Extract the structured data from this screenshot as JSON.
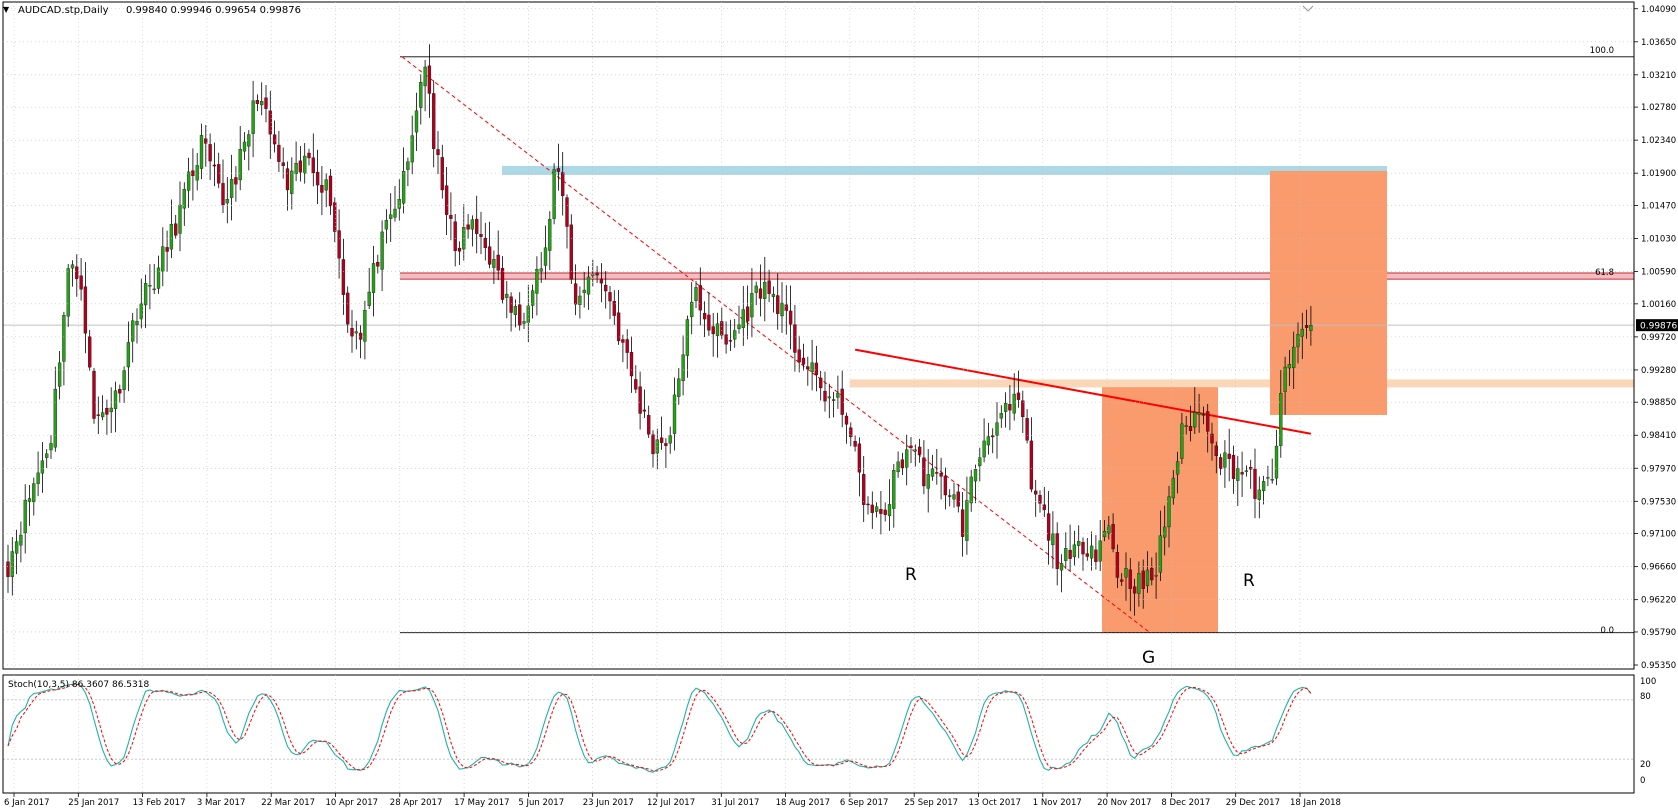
{
  "header": {
    "symbol": "AUDCAD.stp,Daily",
    "ohlc": "0.99840 0.99946 0.99654 0.99876",
    "arrow_glyph": "▼"
  },
  "indicator": {
    "title": "Stoch(10,3,5) 86.3607 86.5318",
    "y_labels": [
      "100",
      "80",
      "20",
      "0"
    ]
  },
  "fib_labels": {
    "top": "100.0",
    "mid": "61.8",
    "bottom": "0.0"
  },
  "pattern_labels": {
    "left_shoulder": "R",
    "head": "G",
    "right_shoulder": "R"
  },
  "colors": {
    "bull": "#26a017",
    "bear": "#b0001e",
    "wick": "#000000",
    "grid": "#c0c0c0",
    "current_price_line": "#c0c0c0",
    "neckline": "#ff0000",
    "fib_dashed": "#ff0000",
    "target_band": "#add8e6",
    "fib618_band": "#f4bcc4",
    "fib618_line": "#c0392b",
    "neck_band": "#f9d7b8",
    "projection_box": "#fa9b6e",
    "stoch_main": "#20b2aa",
    "stoch_signal": "#ff0000"
  },
  "chart_data": {
    "type": "candlestick",
    "title": "AUDCAD.stp,Daily",
    "ylim": [
      0.9535,
      1.041
    ],
    "y_ticks": [
      "1.04090",
      "1.03650",
      "1.03210",
      "1.02780",
      "1.02340",
      "1.01900",
      "1.01470",
      "1.01030",
      "1.00590",
      "1.00160",
      "0.99720",
      "0.99280",
      "0.98850",
      "0.98410",
      "0.97970",
      "0.97530",
      "0.97100",
      "0.96660",
      "0.96220",
      "0.95790",
      "0.95350"
    ],
    "current_price": "0.99876",
    "x_labels": [
      "6 Jan 2017",
      "25 Jan 2017",
      "13 Feb 2017",
      "3 Mar 2017",
      "22 Mar 2017",
      "10 Apr 2017",
      "28 Apr 2017",
      "17 May 2017",
      "5 Jun 2017",
      "23 Jun 2017",
      "12 Jul 2017",
      "31 Jul 2017",
      "18 Aug 2017",
      "6 Sep 2017",
      "25 Sep 2017",
      "13 Oct 2017",
      "1 Nov 2017",
      "20 Nov 2017",
      "8 Dec 2017",
      "29 Dec 2017",
      "18 Jan 2018"
    ],
    "close_anchors": [
      [
        0,
        0.967
      ],
      [
        5,
        0.976
      ],
      [
        10,
        0.984
      ],
      [
        14,
        1.006
      ],
      [
        17,
        1.005
      ],
      [
        20,
        0.986
      ],
      [
        25,
        0.989
      ],
      [
        30,
        1.001
      ],
      [
        35,
        1.006
      ],
      [
        40,
        1.014
      ],
      [
        45,
        1.023
      ],
      [
        50,
        1.015
      ],
      [
        55,
        1.022
      ],
      [
        58,
        1.03
      ],
      [
        61,
        1.024
      ],
      [
        65,
        1.017
      ],
      [
        70,
        1.021
      ],
      [
        75,
        1.016
      ],
      [
        79,
        0.999
      ],
      [
        82,
        0.998
      ],
      [
        86,
        1.008
      ],
      [
        90,
        1.014
      ],
      [
        93,
        1.02
      ],
      [
        95,
        1.028
      ],
      [
        97,
        1.034
      ],
      [
        99,
        1.022
      ],
      [
        101,
        1.018
      ],
      [
        104,
        1.008
      ],
      [
        107,
        1.012
      ],
      [
        111,
        1.01
      ],
      [
        115,
        1.003
      ],
      [
        119,
        0.999
      ],
      [
        122,
        1.005
      ],
      [
        125,
        1.008
      ],
      [
        127,
        1.019
      ],
      [
        129,
        1.016
      ],
      [
        132,
        1.001
      ],
      [
        135,
        1.006
      ],
      [
        139,
        1.004
      ],
      [
        143,
        0.996
      ],
      [
        147,
        0.988
      ],
      [
        150,
        0.983
      ],
      [
        154,
        0.984
      ],
      [
        157,
        0.996
      ],
      [
        160,
        1.003
      ],
      [
        163,
        0.999
      ],
      [
        167,
        0.996
      ],
      [
        171,
        1.0
      ],
      [
        175,
        1.004
      ],
      [
        179,
        1.002
      ],
      [
        183,
        0.996
      ],
      [
        187,
        0.992
      ],
      [
        191,
        0.989
      ],
      [
        195,
        0.987
      ],
      [
        198,
        0.978
      ],
      [
        201,
        0.973
      ],
      [
        204,
        0.974
      ],
      [
        207,
        0.98
      ],
      [
        210,
        0.983
      ],
      [
        213,
        0.979
      ],
      [
        216,
        0.978
      ],
      [
        219,
        0.977
      ],
      [
        222,
        0.972
      ],
      [
        225,
        0.98
      ],
      [
        228,
        0.985
      ],
      [
        231,
        0.986
      ],
      [
        234,
        0.988
      ],
      [
        236,
        0.987
      ],
      [
        238,
        0.977
      ],
      [
        241,
        0.973
      ],
      [
        244,
        0.968
      ],
      [
        247,
        0.967
      ],
      [
        250,
        0.97
      ],
      [
        253,
        0.969
      ],
      [
        256,
        0.972
      ],
      [
        258,
        0.966
      ],
      [
        261,
        0.965
      ],
      [
        264,
        0.964
      ],
      [
        267,
        0.966
      ],
      [
        270,
        0.976
      ],
      [
        273,
        0.984
      ],
      [
        276,
        0.987
      ],
      [
        279,
        0.986
      ],
      [
        282,
        0.981
      ],
      [
        285,
        0.98
      ],
      [
        288,
        0.979
      ],
      [
        291,
        0.976
      ],
      [
        294,
        0.978
      ],
      [
        296,
        0.99
      ],
      [
        298,
        0.993
      ],
      [
        301,
        0.999
      ],
      [
        303,
        0.99876
      ]
    ],
    "fibonacci": {
      "level_100": 1.0345,
      "level_618": 1.0053,
      "level_0": 0.9578
    },
    "neckline": {
      "from": [
        0.9955,
        197
      ],
      "to": [
        0.9843,
        303
      ]
    },
    "indicator": {
      "name": "Stoch(10,3,5)",
      "main": 86.3607,
      "signal": 86.5318,
      "ylim": [
        0,
        100
      ],
      "levels": [
        20,
        80
      ]
    }
  }
}
